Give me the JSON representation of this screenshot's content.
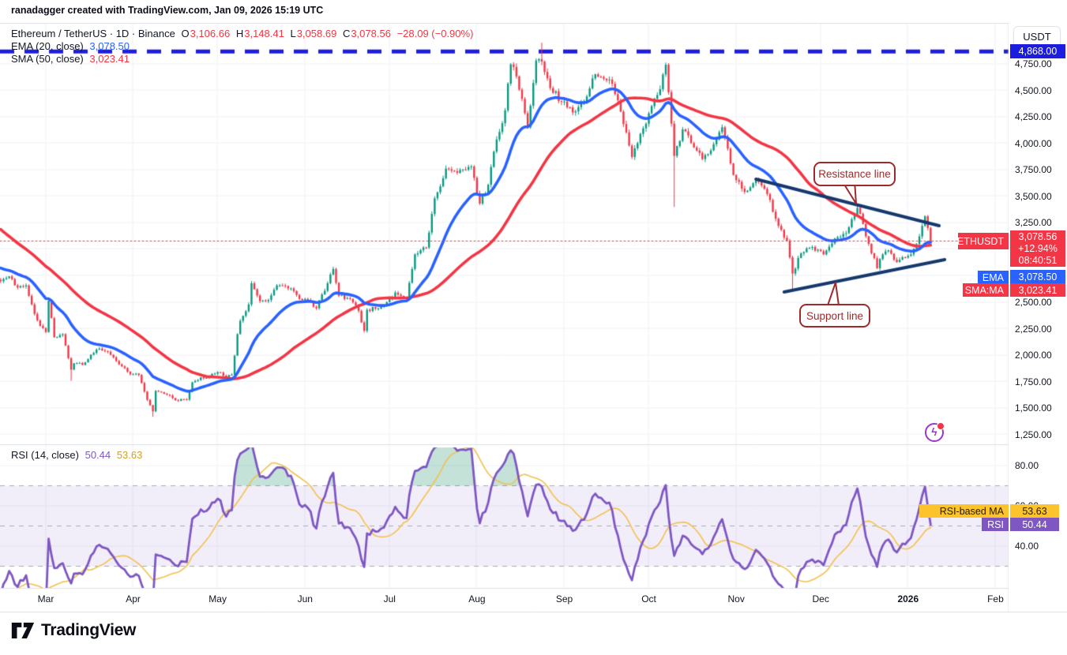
{
  "attribution": "ranadagger created with TradingView.com, Jan 09, 2026 15:19 UTC",
  "main_legend": {
    "symbol_row": {
      "title": "Ethereum / TetherUS · 1D · Binance",
      "o_label": "O",
      "o": "3,106.66",
      "h_label": "H",
      "h": "3,148.41",
      "l_label": "L",
      "l": "3,058.69",
      "c_label": "C",
      "c": "3,078.56",
      "change": "−28.09 (−0.90%)"
    },
    "ema_row": {
      "label": "EMA (20, close)",
      "value": "3,078.50"
    },
    "sma_row": {
      "label": "SMA (50, close)",
      "value": "3,023.41"
    }
  },
  "rsi_legend": {
    "label": "RSI (14, close)",
    "rsi_value": "50.44",
    "ma_value": "53.63"
  },
  "price_axis": {
    "currency_button": "USDT",
    "labels": [
      {
        "label": "4,750.00",
        "value": 4750
      },
      {
        "label": "4,500.00",
        "value": 4500
      },
      {
        "label": "4,250.00",
        "value": 4250
      },
      {
        "label": "4,000.00",
        "value": 4000
      },
      {
        "label": "3,750.00",
        "value": 3750
      },
      {
        "label": "3,500.00",
        "value": 3500
      },
      {
        "label": "3,250.00",
        "value": 3250
      },
      {
        "label": "2,500.00",
        "value": 2500
      },
      {
        "label": "2,250.00",
        "value": 2250
      },
      {
        "label": "2,000.00",
        "value": 2000
      },
      {
        "label": "1,750.00",
        "value": 1750
      },
      {
        "label": "1,500.00",
        "value": 1500
      },
      {
        "label": "1,250.00",
        "value": 1250
      }
    ],
    "rsi_labels": [
      {
        "label": "80.00",
        "value": 80
      },
      {
        "label": "60.00",
        "value": 60
      },
      {
        "label": "40.00",
        "value": 40
      }
    ],
    "badges": {
      "ath": {
        "label": "4,868.00",
        "value": 4868
      },
      "symbol": {
        "name": "ETHUSDT",
        "price": "3,078.56",
        "change_pct": "+12.94%",
        "countdown": "08:40:51",
        "value": 3078.56
      },
      "ema": {
        "name": "EMA",
        "value_label": "3,078.50"
      },
      "sma": {
        "name": "SMA:MA",
        "value_label": "3,023.41"
      },
      "rsi_ma": {
        "name": "RSI-based MA",
        "value_label": "53.63"
      },
      "rsi": {
        "name": "RSI",
        "value_label": "50.44"
      }
    }
  },
  "time_axis": {
    "months": [
      {
        "label": "Mar",
        "day": 0,
        "bold": false
      },
      {
        "label": "Apr",
        "day": 31,
        "bold": false
      },
      {
        "label": "May",
        "day": 61,
        "bold": false
      },
      {
        "label": "Jun",
        "day": 92,
        "bold": false
      },
      {
        "label": "Jul",
        "day": 122,
        "bold": false
      },
      {
        "label": "Aug",
        "day": 153,
        "bold": false
      },
      {
        "label": "Sep",
        "day": 184,
        "bold": false
      },
      {
        "label": "Oct",
        "day": 214,
        "bold": false
      },
      {
        "label": "Nov",
        "day": 245,
        "bold": false
      },
      {
        "label": "Dec",
        "day": 275,
        "bold": false
      },
      {
        "label": "2026",
        "day": 306,
        "bold": true
      },
      {
        "label": "Feb",
        "day": 337,
        "bold": false
      }
    ]
  },
  "annotations": {
    "resistance": {
      "label": "Resistance line"
    },
    "support": {
      "label": "Support line"
    }
  },
  "logo": {
    "text": "TradingView"
  },
  "colors": {
    "candle_up": "#089981",
    "candle_down": "#f23645",
    "ema": "#2962ff",
    "sma": "#f23645",
    "ath_line": "#1d1de0",
    "trendline": "#16396d",
    "current_price_line": "#f23645",
    "rsi": "#7e57c2",
    "rsi_ma": "#f2c14e",
    "rsi_band_fill": "rgba(126,87,194,0.10)",
    "rsi_overbought_fill": "rgba(18,138,98,0.25)",
    "grid": "#f0f2f7",
    "border": "#dde0e8",
    "badge_yellow": "#fcc32c",
    "badge_yellow_text": "#211d00",
    "callout": "#9e2b2b"
  },
  "chart_data": {
    "type": "candlestick",
    "title": "Ethereum / TetherUS, 1D, Binance",
    "interval": "1D",
    "exchange": "Binance",
    "ohlc": {
      "open": 3106.66,
      "high": 3148.41,
      "low": 3058.69,
      "close": 3078.56,
      "change": -28.09,
      "change_pct": -0.9
    },
    "current_price": 3078.56,
    "ath_level": 4868.0,
    "price_axis_range": [
      1250,
      4955
    ],
    "rsi_levels": [
      70,
      50,
      30
    ],
    "indicators": {
      "ema": {
        "period": 20,
        "last": 3078.5
      },
      "sma": {
        "period": 50,
        "last": 3023.41
      },
      "rsi": {
        "period": 14,
        "last": 50.44,
        "ma_period": 14,
        "ma_last": 53.63
      }
    },
    "visible_from_day": -16,
    "seed": 11,
    "noise": 0.008,
    "wick_amp": 0.008,
    "close_anchors": [
      [
        -66,
        3900
      ],
      [
        -58,
        3620
      ],
      [
        -50,
        3450
      ],
      [
        -42,
        3300
      ],
      [
        -36,
        3050
      ],
      [
        -30,
        2760
      ],
      [
        -24,
        2700
      ],
      [
        -20,
        2760
      ],
      [
        -16,
        2700
      ],
      [
        -13,
        2745
      ],
      [
        -10,
        2640
      ],
      [
        -7,
        2660
      ],
      [
        -5,
        2480
      ],
      [
        -3,
        2330
      ],
      [
        0,
        2220
      ],
      [
        1,
        2515
      ],
      [
        3,
        2170
      ],
      [
        6,
        2200
      ],
      [
        9,
        1865
      ],
      [
        10,
        1925
      ],
      [
        13,
        1910
      ],
      [
        18,
        2055
      ],
      [
        21,
        2040
      ],
      [
        23,
        2005
      ],
      [
        27,
        1895
      ],
      [
        30,
        1820
      ],
      [
        33,
        1815
      ],
      [
        36,
        1580
      ],
      [
        38,
        1472
      ],
      [
        39,
        1665
      ],
      [
        43,
        1630
      ],
      [
        46,
        1577
      ],
      [
        50,
        1582
      ],
      [
        52,
        1745
      ],
      [
        55,
        1792
      ],
      [
        58,
        1800
      ],
      [
        61,
        1842
      ],
      [
        64,
        1795
      ],
      [
        66,
        1817
      ],
      [
        68,
        2200
      ],
      [
        69,
        2325
      ],
      [
        72,
        2480
      ],
      [
        73,
        2680
      ],
      [
        76,
        2512
      ],
      [
        79,
        2522
      ],
      [
        82,
        2660
      ],
      [
        87,
        2632
      ],
      [
        90,
        2532
      ],
      [
        93,
        2522
      ],
      [
        96,
        2445
      ],
      [
        100,
        2680
      ],
      [
        102,
        2815
      ],
      [
        104,
        2562
      ],
      [
        108,
        2532
      ],
      [
        111,
        2420
      ],
      [
        113,
        2232
      ],
      [
        114,
        2430
      ],
      [
        118,
        2442
      ],
      [
        121,
        2502
      ],
      [
        124,
        2592
      ],
      [
        128,
        2542
      ],
      [
        131,
        2952
      ],
      [
        135,
        3017
      ],
      [
        138,
        3482
      ],
      [
        142,
        3762
      ],
      [
        146,
        3722
      ],
      [
        151,
        3782
      ],
      [
        154,
        3432
      ],
      [
        157,
        3610
      ],
      [
        159,
        3922
      ],
      [
        163,
        4312
      ],
      [
        165,
        4745
      ],
      [
        167,
        4632
      ],
      [
        169,
        4420
      ],
      [
        171,
        4152
      ],
      [
        174,
        4782
      ],
      [
        176,
        4772
      ],
      [
        179,
        4522
      ],
      [
        183,
        4392
      ],
      [
        186,
        4340
      ],
      [
        188,
        4302
      ],
      [
        191,
        4390
      ],
      [
        195,
        4652
      ],
      [
        198,
        4610
      ],
      [
        201,
        4562
      ],
      [
        205,
        4182
      ],
      [
        208,
        3872
      ],
      [
        212,
        4142
      ],
      [
        215,
        4352
      ],
      [
        218,
        4512
      ],
      [
        220,
        4742
      ],
      [
        223,
        3882
      ],
      [
        226,
        4132
      ],
      [
        230,
        3962
      ],
      [
        233,
        3852
      ],
      [
        237,
        3992
      ],
      [
        240,
        4152
      ],
      [
        244,
        3702
      ],
      [
        248,
        3542
      ],
      [
        252,
        3662
      ],
      [
        256,
        3522
      ],
      [
        260,
        3222
      ],
      [
        263,
        3082
      ],
      [
        265,
        2772
      ],
      [
        268,
        2962
      ],
      [
        272,
        3022
      ],
      [
        276,
        2952
      ],
      [
        280,
        3102
      ],
      [
        284,
        3152
      ],
      [
        288,
        3392
      ],
      [
        290,
        3240
      ],
      [
        292,
        3052
      ],
      [
        295,
        2822
      ],
      [
        297,
        2952
      ],
      [
        299,
        2992
      ],
      [
        301,
        2902
      ],
      [
        303,
        2902
      ],
      [
        305,
        2922
      ],
      [
        307,
        2952
      ],
      [
        309,
        3050
      ],
      [
        310,
        3122
      ],
      [
        311,
        3222
      ],
      [
        312,
        3312
      ],
      [
        313,
        3202
      ],
      [
        314,
        3078.56
      ]
    ],
    "wick_overrides": [
      {
        "day": 9,
        "low": 1760
      },
      {
        "day": 38,
        "low": 1420
      },
      {
        "day": 176,
        "high": 4950
      },
      {
        "day": 223,
        "low": 3400
      },
      {
        "day": 265,
        "low": 2620
      }
    ],
    "trendlines": [
      {
        "name": "resistance-line",
        "from_day": 252,
        "from_price": 3663,
        "to_day": 317,
        "to_price": 3223
      },
      {
        "name": "support-line",
        "from_day": 262,
        "from_price": 2598,
        "to_day": 319,
        "to_price": 2903
      }
    ]
  }
}
